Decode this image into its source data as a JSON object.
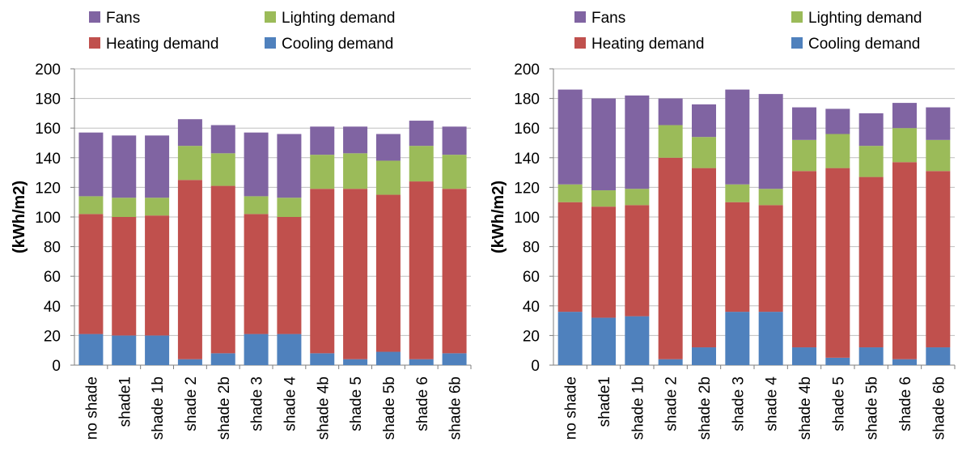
{
  "colors": {
    "cooling": "#4F81BD",
    "heating": "#C0504D",
    "lighting": "#9BBB59",
    "fans": "#8064A2",
    "grid": "#BFBFBF",
    "axis": "#7F7F7F"
  },
  "chart_data": [
    {
      "type": "bar",
      "stacked": true,
      "title": "",
      "xlabel": "",
      "ylabel": "(kWh/m2)",
      "ylim": [
        0,
        200
      ],
      "yticks": [
        0,
        20,
        40,
        60,
        80,
        100,
        120,
        140,
        160,
        180,
        200
      ],
      "grid": true,
      "legend_position": "top",
      "categories": [
        "no shade",
        "shade1",
        "shade 1b",
        "shade 2",
        "shade 2b",
        "shade 3",
        "shade 4",
        "shade 4b",
        "shade 5",
        "shade 5b",
        "shade 6",
        "shade 6b"
      ],
      "legend": [
        {
          "key": "fans",
          "name": "Fans"
        },
        {
          "key": "lighting",
          "name": "Lighting demand"
        },
        {
          "key": "heating",
          "name": "Heating demand"
        },
        {
          "key": "cooling",
          "name": "Cooling demand"
        }
      ],
      "series": [
        {
          "key": "cooling",
          "name": "Cooling demand",
          "values": [
            21,
            20,
            20,
            4,
            8,
            21,
            21,
            8,
            4,
            9,
            4,
            8
          ]
        },
        {
          "key": "heating",
          "name": "Heating demand",
          "values": [
            81,
            80,
            81,
            121,
            113,
            81,
            79,
            111,
            115,
            106,
            120,
            111
          ]
        },
        {
          "key": "lighting",
          "name": "Lighting demand",
          "values": [
            12,
            13,
            12,
            23,
            22,
            12,
            13,
            23,
            24,
            23,
            24,
            23
          ]
        },
        {
          "key": "fans",
          "name": "Fans",
          "values": [
            43,
            42,
            42,
            18,
            19,
            43,
            43,
            19,
            18,
            18,
            17,
            19
          ]
        }
      ]
    },
    {
      "type": "bar",
      "stacked": true,
      "title": "",
      "xlabel": "",
      "ylabel": "(kWh/m2)",
      "ylim": [
        0,
        200
      ],
      "yticks": [
        0,
        20,
        40,
        60,
        80,
        100,
        120,
        140,
        160,
        180,
        200
      ],
      "grid": true,
      "legend_position": "top",
      "categories": [
        "no shade",
        "shade1",
        "shade 1b",
        "shade 2",
        "shade 2b",
        "shade 3",
        "shade 4",
        "shade 4b",
        "shade 5",
        "shade 5b",
        "shade 6",
        "shade 6b"
      ],
      "legend": [
        {
          "key": "fans",
          "name": "Fans"
        },
        {
          "key": "lighting",
          "name": "Lighting demand"
        },
        {
          "key": "heating",
          "name": "Heating demand"
        },
        {
          "key": "cooling",
          "name": "Cooling demand"
        }
      ],
      "series": [
        {
          "key": "cooling",
          "name": "Cooling demand",
          "values": [
            36,
            32,
            33,
            4,
            12,
            36,
            36,
            12,
            5,
            12,
            4,
            12
          ]
        },
        {
          "key": "heating",
          "name": "Heating demand",
          "values": [
            74,
            75,
            75,
            136,
            121,
            74,
            72,
            119,
            128,
            115,
            133,
            119
          ]
        },
        {
          "key": "lighting",
          "name": "Lighting demand",
          "values": [
            12,
            11,
            11,
            22,
            21,
            12,
            11,
            21,
            23,
            21,
            23,
            21
          ]
        },
        {
          "key": "fans",
          "name": "Fans",
          "values": [
            64,
            62,
            63,
            18,
            22,
            64,
            64,
            22,
            17,
            22,
            17,
            22
          ]
        }
      ]
    }
  ]
}
